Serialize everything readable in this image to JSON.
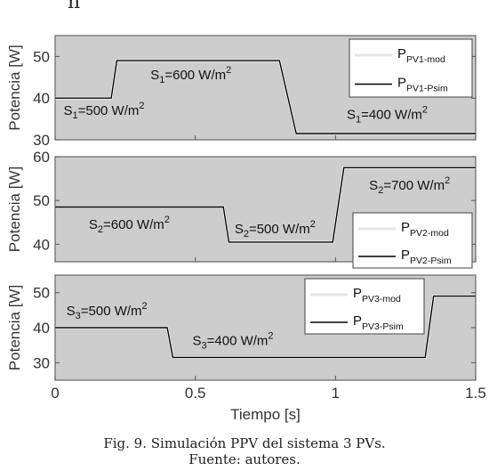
{
  "figure": {
    "caption": "Fig. 9. Simulación PPV del sistema 3 PVs.",
    "source": "Fuente: autores.",
    "top_partial_text": "n"
  },
  "colors": {
    "plot_bg": "#cdcdcd",
    "frame": "#666666",
    "sim_line": "#000000",
    "mod_line": "#ffffff",
    "legend_bg": "#ffffff"
  },
  "chart_data": [
    {
      "type": "line",
      "ylabel": "Potencia [W]",
      "xlim": [
        0,
        1.5
      ],
      "ylim": [
        30,
        55
      ],
      "yticks": [
        30,
        40,
        50
      ],
      "xtick_labels": [],
      "series": [
        {
          "name": "P_PV1-mod",
          "label_main": "P",
          "label_sub": "PV1-mod",
          "color": "#ffffff",
          "x": [
            0,
            0.2,
            0.22,
            0.8,
            0.86,
            1.5
          ],
          "y": [
            40,
            40,
            49,
            49,
            31.5,
            31.5
          ]
        },
        {
          "name": "P_PV1-Psim",
          "label_main": "P",
          "label_sub": "PV1-Psim",
          "color": "#000000",
          "x": [
            0,
            0.2,
            0.22,
            0.8,
            0.86,
            1.5
          ],
          "y": [
            40,
            40,
            49,
            49,
            31.5,
            31.5
          ]
        }
      ],
      "annotations": [
        {
          "pre": "S",
          "sub": "1",
          "mid": "=500 W/m",
          "sup": "2",
          "x": 0.03,
          "y": 36
        },
        {
          "pre": "S",
          "sub": "1",
          "mid": "=600 W/m",
          "sup": "2",
          "x": 0.34,
          "y": 44.5
        },
        {
          "pre": "S",
          "sub": "1",
          "mid": "=400 W/m",
          "sup": "2",
          "x": 1.04,
          "y": 35
        }
      ]
    },
    {
      "type": "line",
      "ylabel": "Potencia [W]",
      "xlim": [
        0,
        1.5
      ],
      "ylim": [
        36,
        60
      ],
      "yticks": [
        40,
        50,
        60
      ],
      "xtick_labels": [],
      "series": [
        {
          "name": "P_PV2-mod",
          "label_main": "P",
          "label_sub": "PV2-mod",
          "color": "#ffffff",
          "x": [
            0,
            0.6,
            0.62,
            0.99,
            1.03,
            1.5
          ],
          "y": [
            48.5,
            48.5,
            40.5,
            40.5,
            57.5,
            57.5
          ]
        },
        {
          "name": "P_PV2-Psim",
          "label_main": "P",
          "label_sub": "PV2-Psim",
          "color": "#000000",
          "x": [
            0,
            0.6,
            0.62,
            0.99,
            1.03,
            1.5
          ],
          "y": [
            48.5,
            48.5,
            40.5,
            40.5,
            57.5,
            57.5
          ]
        }
      ],
      "annotations": [
        {
          "pre": "S",
          "sub": "2",
          "mid": "=600 W/m",
          "sup": "2",
          "x": 0.12,
          "y": 43.5
        },
        {
          "pre": "S",
          "sub": "2",
          "mid": "=500 W/m",
          "sup": "2",
          "x": 0.64,
          "y": 42.5
        },
        {
          "pre": "S",
          "sub": "2",
          "mid": "=700 W/m",
          "sup": "2",
          "x": 1.12,
          "y": 52.5
        }
      ]
    },
    {
      "type": "line",
      "ylabel": "Potencia [W]",
      "xlabel": "Tiempo [s]",
      "xlim": [
        0,
        1.5
      ],
      "ylim": [
        25,
        55
      ],
      "yticks": [
        30,
        40,
        50
      ],
      "xticks": [
        0,
        0.5,
        1,
        1.5
      ],
      "xtick_labels": [
        "0",
        "0.5",
        "1",
        "1.5"
      ],
      "series": [
        {
          "name": "P_PV3-mod",
          "label_main": "P",
          "label_sub": "PV3-mod",
          "color": "#ffffff",
          "x": [
            0,
            0.4,
            0.42,
            1.32,
            1.35,
            1.5
          ],
          "y": [
            40,
            40,
            31.5,
            31.5,
            49,
            49
          ]
        },
        {
          "name": "P_PV3-Psim",
          "label_main": "P",
          "label_sub": "PV3-Psim",
          "color": "#000000",
          "x": [
            0,
            0.4,
            0.42,
            1.32,
            1.35,
            1.5
          ],
          "y": [
            40,
            40,
            31.5,
            31.5,
            49,
            49
          ]
        }
      ],
      "annotations": [
        {
          "pre": "S",
          "sub": "3",
          "mid": "=500 W/m",
          "sup": "2",
          "x": 0.04,
          "y": 43.5
        },
        {
          "pre": "S",
          "sub": "3",
          "mid": "=400 W/m",
          "sup": "2",
          "x": 0.49,
          "y": 35
        }
      ]
    }
  ]
}
